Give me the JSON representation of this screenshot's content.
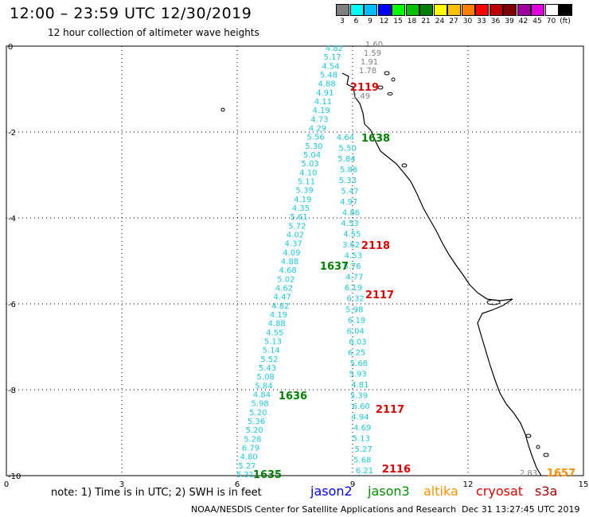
{
  "header": {
    "title": "12:00 – 23:59 UTC 12/30/2019",
    "subtitle": "12 hour collection of altimeter wave heights"
  },
  "colorbar": [
    {
      "color": "#808080",
      "label": "3"
    },
    {
      "color": "#00ffff",
      "label": "6"
    },
    {
      "color": "#00bfff",
      "label": "9"
    },
    {
      "color": "#0000ff",
      "label": "12"
    },
    {
      "color": "#00ff00",
      "label": "15"
    },
    {
      "color": "#00c000",
      "label": "18"
    },
    {
      "color": "#008000",
      "label": "21"
    },
    {
      "color": "#ffff00",
      "label": "24"
    },
    {
      "color": "#ffc000",
      "label": "27"
    },
    {
      "color": "#ff8000",
      "label": "30"
    },
    {
      "color": "#ff0000",
      "label": "33"
    },
    {
      "color": "#c00000",
      "label": "36"
    },
    {
      "color": "#800000",
      "label": "39"
    },
    {
      "color": "#a000a0",
      "label": "42"
    },
    {
      "color": "#e000e0",
      "label": "45"
    },
    {
      "color": "#ffffff",
      "label": "70"
    },
    {
      "color": "#000000",
      "label": "(ft)"
    }
  ],
  "axes": {
    "x_ticks": [
      "0",
      "3",
      "6",
      "9",
      "12",
      "15"
    ],
    "y_ticks": [
      "0",
      "-2",
      "-4",
      "-6",
      "-8",
      "-10"
    ],
    "x_range": [
      0,
      15
    ],
    "y_range": [
      -10,
      0
    ]
  },
  "tracks": {
    "left_values": [
      "4.82",
      "5.17",
      "4.54",
      "5.48",
      "4.88",
      "4.91",
      "4.11",
      "4.19",
      "4.73",
      "4.29",
      "5.56",
      "5.30",
      "5.04",
      "5.03",
      "4.10",
      "5.11",
      "5.39",
      "4.19",
      "4.35",
      "5.61",
      "5.72",
      "4.02",
      "4.37",
      "4.09",
      "4.88",
      "4.68",
      "5.02",
      "4.62",
      "4.47",
      "4.82",
      "4.19",
      "4.88",
      "4.55",
      "5.13",
      "5.14",
      "5.52",
      "5.43",
      "5.08",
      "5.84",
      "4.84",
      "5.98",
      "5.20",
      "5.36",
      "5.20",
      "5.28",
      "6.79",
      "4.80",
      "5.27",
      "5.31"
    ],
    "right_values": [
      "4.64",
      "5.50",
      "5.84",
      "5.88",
      "5.33",
      "5.47",
      "4.97",
      "4.86",
      "4.53",
      "4.55",
      "3.62",
      "4.53",
      "5.76",
      "4.77",
      "6.19",
      "6.32",
      "5.98",
      "6.19",
      "6.04",
      "6.03",
      "6.25",
      "5.68",
      "5.93",
      "4.81",
      "5.39",
      "6.60",
      "4.94",
      "4.69",
      "5.13",
      "5.27",
      "5.68",
      "6.21"
    ],
    "gray_values": [
      "1.60",
      "1.59",
      "1.91",
      "1.78",
      "1.49",
      "2.83"
    ],
    "color_left": "#1ec8dc",
    "color_gray": "#808080"
  },
  "time_labels": [
    {
      "text": "2119",
      "color": "#e00000"
    },
    {
      "text": "1638",
      "color": "#008000"
    },
    {
      "text": "2118",
      "color": "#e00000"
    },
    {
      "text": "1637",
      "color": "#008000"
    },
    {
      "text": "2117",
      "color": "#e00000"
    },
    {
      "text": "1636",
      "color": "#008000"
    },
    {
      "text": "2117",
      "color": "#e00000"
    },
    {
      "text": "1635",
      "color": "#008000"
    },
    {
      "text": "2116",
      "color": "#e00000"
    },
    {
      "text": "1657",
      "color": "#f09000"
    }
  ],
  "note": "note:  1) Time is in UTC;  2) SWH is in feet",
  "legend": [
    {
      "text": "jason2",
      "color": "#0000ff"
    },
    {
      "text": "jason3",
      "color": "#009000"
    },
    {
      "text": "altika",
      "color": "#ff9000"
    },
    {
      "text": "cryosat",
      "color": "#e00000"
    },
    {
      "text": "s3a",
      "color": "#a00000"
    }
  ],
  "footer": "NOAA/NESDIS Center for Satellite Applications and Research",
  "stamp": "Dec 31 13:27:45 UTC 2019"
}
